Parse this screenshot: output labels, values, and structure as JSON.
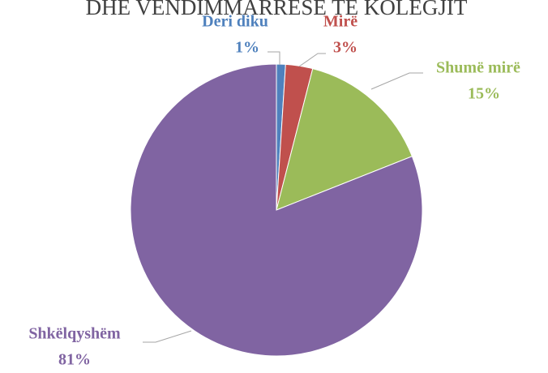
{
  "chart_data": {
    "type": "pie",
    "title": "DHE VENDIMMARRESE TE KOLEGJIT",
    "categories": [
      "Deri diku",
      "Mirë",
      "Shumë mirë",
      "Shkëlqyshëm"
    ],
    "values": [
      1,
      3,
      15,
      81
    ],
    "value_labels": [
      "1%",
      "3%",
      "15%",
      "81%"
    ],
    "colors": [
      "#4f81bd",
      "#c0504d",
      "#9bbb59",
      "#8064a2"
    ]
  }
}
